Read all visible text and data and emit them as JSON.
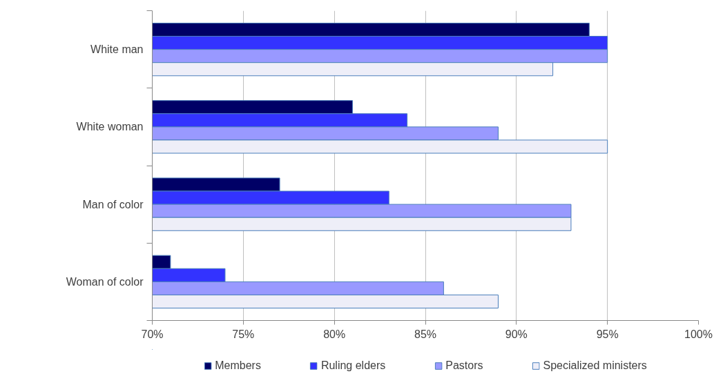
{
  "chart_data": {
    "type": "bar",
    "orientation": "horizontal",
    "categories": [
      "White man",
      "White woman",
      "Man of color",
      "Woman of color"
    ],
    "series": [
      {
        "name": "Members",
        "color": "#000066",
        "values": [
          94,
          81,
          77,
          71
        ]
      },
      {
        "name": "Ruling elders",
        "color": "#3333ff",
        "values": [
          95,
          84,
          83,
          74
        ]
      },
      {
        "name": "Pastors",
        "color": "#9999ff",
        "values": [
          95,
          89,
          93,
          86
        ]
      },
      {
        "name": "Specialized ministers",
        "color": "#eeeef8",
        "values": [
          92,
          95,
          93,
          89
        ]
      }
    ],
    "xlim": [
      70,
      100
    ],
    "xticks": [
      {
        "value": 70,
        "label": "70%"
      },
      {
        "value": 75,
        "label": "75%"
      },
      {
        "value": 80,
        "label": "80%"
      },
      {
        "value": 85,
        "label": "85%"
      },
      {
        "value": 90,
        "label": "90%"
      },
      {
        "value": 95,
        "label": "95%"
      },
      {
        "value": 100,
        "label": "100%"
      }
    ],
    "grid": "x",
    "legend": "bottom"
  }
}
